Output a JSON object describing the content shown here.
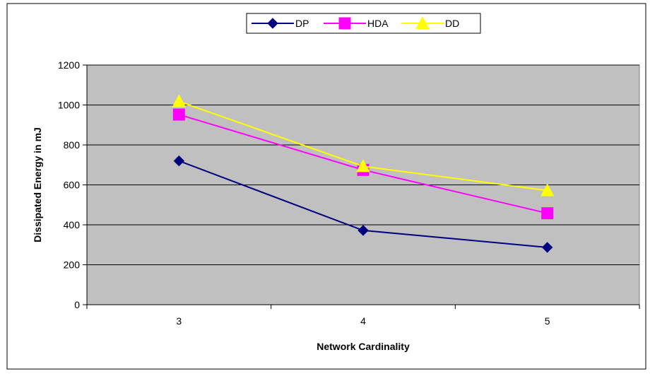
{
  "chart_data": {
    "type": "line",
    "title": "",
    "xlabel": "Network Cardinality",
    "ylabel": "Dissipated Energy in mJ",
    "categories": [
      "3",
      "4",
      "5"
    ],
    "ylim": [
      0,
      1200
    ],
    "yticks": [
      0,
      200,
      400,
      600,
      800,
      1000,
      1200
    ],
    "grid": "horizontal",
    "legend_position": "top",
    "plot_background": "#c0c0c0",
    "series": [
      {
        "name": "DP",
        "values": [
          720,
          372,
          287
        ],
        "color": "#000080",
        "marker": "diamond"
      },
      {
        "name": "HDA",
        "values": [
          952,
          675,
          458
        ],
        "color": "#ff00ff",
        "marker": "square"
      },
      {
        "name": "DD",
        "values": [
          1018,
          693,
          572
        ],
        "color": "#ffff00",
        "marker": "triangle"
      }
    ]
  }
}
